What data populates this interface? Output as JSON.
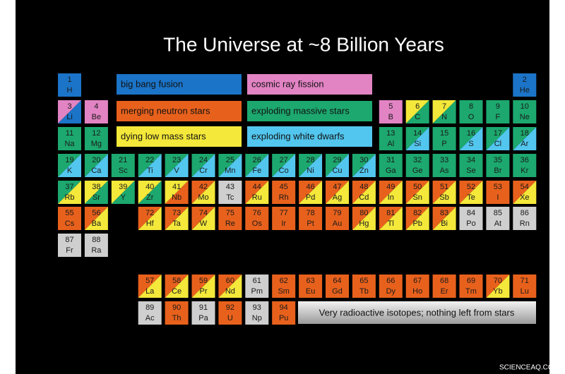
{
  "title": "The Universe at ~8 Billion Years",
  "legend": [
    {
      "label": "big bang fusion",
      "color": "#1b74c8"
    },
    {
      "label": "cosmic ray fission",
      "color": "#e283c3"
    },
    {
      "label": "merging neutron stars",
      "color": "#e8611c"
    },
    {
      "label": "exploding massive stars",
      "color": "#1ca86e"
    },
    {
      "label": "dying low mass stars",
      "color": "#f4e83a"
    },
    {
      "label": "exploding white dwarfs",
      "color": "#52c6ee"
    }
  ],
  "note": "Very radioactive isotopes; nothing left from stars",
  "watermark": "SCIENCEAQ.COM",
  "elements": [
    {
      "number": 1,
      "symbol": "H",
      "colors": [
        "#1b74c8"
      ]
    },
    {
      "number": 2,
      "symbol": "He",
      "colors": [
        "#1b74c8"
      ]
    },
    {
      "number": 3,
      "symbol": "Li",
      "colors": [
        "#e283c3",
        "#1b74c8"
      ]
    },
    {
      "number": 4,
      "symbol": "Be",
      "colors": [
        "#e283c3"
      ]
    },
    {
      "number": 5,
      "symbol": "B",
      "colors": [
        "#e283c3"
      ]
    },
    {
      "number": 6,
      "symbol": "C",
      "colors": [
        "#f4e83a",
        "#1ca86e"
      ]
    },
    {
      "number": 7,
      "symbol": "N",
      "colors": [
        "#f4e83a",
        "#1ca86e"
      ]
    },
    {
      "number": 8,
      "symbol": "O",
      "colors": [
        "#1ca86e"
      ]
    },
    {
      "number": 9,
      "symbol": "F",
      "colors": [
        "#1ca86e"
      ]
    },
    {
      "number": 10,
      "symbol": "Ne",
      "colors": [
        "#1ca86e"
      ]
    },
    {
      "number": 11,
      "symbol": "Na",
      "colors": [
        "#1ca86e"
      ]
    },
    {
      "number": 12,
      "symbol": "Mg",
      "colors": [
        "#1ca86e"
      ]
    },
    {
      "number": 13,
      "symbol": "Al",
      "colors": [
        "#1ca86e"
      ]
    },
    {
      "number": 14,
      "symbol": "Si",
      "colors": [
        "#1ca86e",
        "#52c6ee"
      ]
    },
    {
      "number": 15,
      "symbol": "P",
      "colors": [
        "#1ca86e"
      ]
    },
    {
      "number": 16,
      "symbol": "S",
      "colors": [
        "#1ca86e",
        "#52c6ee"
      ]
    },
    {
      "number": 17,
      "symbol": "Cl",
      "colors": [
        "#1ca86e",
        "#52c6ee"
      ]
    },
    {
      "number": 18,
      "symbol": "Ar",
      "colors": [
        "#1ca86e",
        "#52c6ee"
      ]
    },
    {
      "number": 19,
      "symbol": "K",
      "colors": [
        "#1ca86e",
        "#52c6ee"
      ]
    },
    {
      "number": 20,
      "symbol": "Ca",
      "colors": [
        "#1ca86e",
        "#52c6ee"
      ]
    },
    {
      "number": 21,
      "symbol": "Sc",
      "colors": [
        "#1ca86e"
      ]
    },
    {
      "number": 22,
      "symbol": "Ti",
      "colors": [
        "#1ca86e",
        "#52c6ee"
      ]
    },
    {
      "number": 23,
      "symbol": "V",
      "colors": [
        "#1ca86e",
        "#52c6ee"
      ]
    },
    {
      "number": 24,
      "symbol": "Cr",
      "colors": [
        "#1ca86e",
        "#52c6ee"
      ]
    },
    {
      "number": 25,
      "symbol": "Mn",
      "colors": [
        "#1ca86e",
        "#52c6ee"
      ]
    },
    {
      "number": 26,
      "symbol": "Fe",
      "colors": [
        "#1ca86e",
        "#52c6ee"
      ]
    },
    {
      "number": 27,
      "symbol": "Co",
      "colors": [
        "#1ca86e",
        "#52c6ee"
      ]
    },
    {
      "number": 28,
      "symbol": "Ni",
      "colors": [
        "#1ca86e",
        "#52c6ee"
      ]
    },
    {
      "number": 29,
      "symbol": "Cu",
      "colors": [
        "#1ca86e",
        "#52c6ee"
      ]
    },
    {
      "number": 30,
      "symbol": "Zn",
      "colors": [
        "#1ca86e",
        "#52c6ee"
      ]
    },
    {
      "number": 31,
      "symbol": "Ga",
      "colors": [
        "#1ca86e"
      ]
    },
    {
      "number": 32,
      "symbol": "Ge",
      "colors": [
        "#1ca86e"
      ]
    },
    {
      "number": 33,
      "symbol": "As",
      "colors": [
        "#1ca86e"
      ]
    },
    {
      "number": 34,
      "symbol": "Se",
      "colors": [
        "#1ca86e"
      ]
    },
    {
      "number": 35,
      "symbol": "Br",
      "colors": [
        "#1ca86e"
      ]
    },
    {
      "number": 36,
      "symbol": "Kr",
      "colors": [
        "#1ca86e"
      ]
    },
    {
      "number": 37,
      "symbol": "Rb",
      "colors": [
        "#1ca86e",
        "#f4e83a"
      ]
    },
    {
      "number": 38,
      "symbol": "Sr",
      "colors": [
        "#f4e83a",
        "#1ca86e"
      ]
    },
    {
      "number": 39,
      "symbol": "Y",
      "colors": [
        "#f4e83a",
        "#1ca86e"
      ]
    },
    {
      "number": 40,
      "symbol": "Zr",
      "colors": [
        "#f4e83a",
        "#1ca86e"
      ]
    },
    {
      "number": 41,
      "symbol": "Nb",
      "colors": [
        "#f4e83a",
        "#e8611c"
      ]
    },
    {
      "number": 42,
      "symbol": "Mo",
      "colors": [
        "#e8611c",
        "#f4e83a"
      ]
    },
    {
      "number": 43,
      "symbol": "Tc",
      "colors": [
        "#cfcfcf"
      ]
    },
    {
      "number": 44,
      "symbol": "Ru",
      "colors": [
        "#e8611c",
        "#f4e83a"
      ]
    },
    {
      "number": 45,
      "symbol": "Rh",
      "colors": [
        "#e8611c"
      ]
    },
    {
      "number": 46,
      "symbol": "Pd",
      "colors": [
        "#e8611c",
        "#f4e83a"
      ]
    },
    {
      "number": 47,
      "symbol": "Ag",
      "colors": [
        "#e8611c",
        "#f4e83a"
      ]
    },
    {
      "number": 48,
      "symbol": "Cd",
      "colors": [
        "#e8611c",
        "#f4e83a"
      ]
    },
    {
      "number": 49,
      "symbol": "In",
      "colors": [
        "#e8611c",
        "#f4e83a"
      ]
    },
    {
      "number": 50,
      "symbol": "Sn",
      "colors": [
        "#e8611c",
        "#f4e83a"
      ]
    },
    {
      "number": 51,
      "symbol": "Sb",
      "colors": [
        "#e8611c",
        "#f4e83a"
      ]
    },
    {
      "number": 52,
      "symbol": "Te",
      "colors": [
        "#e8611c",
        "#f4e83a"
      ]
    },
    {
      "number": 53,
      "symbol": "I",
      "colors": [
        "#e8611c"
      ]
    },
    {
      "number": 54,
      "symbol": "Xe",
      "colors": [
        "#e8611c",
        "#f4e83a"
      ]
    },
    {
      "number": 55,
      "symbol": "Cs",
      "colors": [
        "#e8611c"
      ]
    },
    {
      "number": 56,
      "symbol": "Ba",
      "colors": [
        "#e8611c",
        "#f4e83a"
      ]
    },
    {
      "number": 57,
      "symbol": "La",
      "colors": [
        "#e8611c",
        "#f4e83a"
      ]
    },
    {
      "number": 58,
      "symbol": "Ce",
      "colors": [
        "#e8611c",
        "#f4e83a"
      ]
    },
    {
      "number": 59,
      "symbol": "Pr",
      "colors": [
        "#e8611c",
        "#f4e83a"
      ]
    },
    {
      "number": 60,
      "symbol": "Nd",
      "colors": [
        "#e8611c",
        "#f4e83a"
      ]
    },
    {
      "number": 61,
      "symbol": "Pm",
      "colors": [
        "#cfcfcf"
      ]
    },
    {
      "number": 62,
      "symbol": "Sm",
      "colors": [
        "#e8611c"
      ]
    },
    {
      "number": 63,
      "symbol": "Eu",
      "colors": [
        "#e8611c"
      ]
    },
    {
      "number": 64,
      "symbol": "Gd",
      "colors": [
        "#e8611c"
      ]
    },
    {
      "number": 65,
      "symbol": "Tb",
      "colors": [
        "#e8611c"
      ]
    },
    {
      "number": 66,
      "symbol": "Dy",
      "colors": [
        "#e8611c"
      ]
    },
    {
      "number": 67,
      "symbol": "Ho",
      "colors": [
        "#e8611c"
      ]
    },
    {
      "number": 68,
      "symbol": "Er",
      "colors": [
        "#e8611c"
      ]
    },
    {
      "number": 69,
      "symbol": "Tm",
      "colors": [
        "#e8611c"
      ]
    },
    {
      "number": 70,
      "symbol": "Yb",
      "colors": [
        "#e8611c",
        "#f4e83a"
      ]
    },
    {
      "number": 71,
      "symbol": "Lu",
      "colors": [
        "#e8611c"
      ]
    },
    {
      "number": 72,
      "symbol": "Hf",
      "colors": [
        "#e8611c",
        "#f4e83a"
      ]
    },
    {
      "number": 73,
      "symbol": "Ta",
      "colors": [
        "#e8611c",
        "#f4e83a"
      ]
    },
    {
      "number": 74,
      "symbol": "W",
      "colors": [
        "#e8611c",
        "#f4e83a"
      ]
    },
    {
      "number": 75,
      "symbol": "Re",
      "colors": [
        "#e8611c"
      ]
    },
    {
      "number": 76,
      "symbol": "Os",
      "colors": [
        "#e8611c"
      ]
    },
    {
      "number": 77,
      "symbol": "Ir",
      "colors": [
        "#e8611c"
      ]
    },
    {
      "number": 78,
      "symbol": "Pt",
      "colors": [
        "#e8611c"
      ]
    },
    {
      "number": 79,
      "symbol": "Au",
      "colors": [
        "#e8611c"
      ]
    },
    {
      "number": 80,
      "symbol": "Hg",
      "colors": [
        "#e8611c",
        "#f4e83a"
      ]
    },
    {
      "number": 81,
      "symbol": "Tl",
      "colors": [
        "#e8611c",
        "#f4e83a"
      ]
    },
    {
      "number": 82,
      "symbol": "Pb",
      "colors": [
        "#e8611c",
        "#f4e83a"
      ]
    },
    {
      "number": 83,
      "symbol": "Bi",
      "colors": [
        "#e8611c",
        "#f4e83a"
      ]
    },
    {
      "number": 84,
      "symbol": "Po",
      "colors": [
        "#cfcfcf"
      ]
    },
    {
      "number": 85,
      "symbol": "At",
      "colors": [
        "#cfcfcf"
      ]
    },
    {
      "number": 86,
      "symbol": "Rn",
      "colors": [
        "#cfcfcf"
      ]
    },
    {
      "number": 87,
      "symbol": "Fr",
      "colors": [
        "#cfcfcf"
      ]
    },
    {
      "number": 88,
      "symbol": "Ra",
      "colors": [
        "#cfcfcf"
      ]
    },
    {
      "number": 89,
      "symbol": "Ac",
      "colors": [
        "#cfcfcf"
      ]
    },
    {
      "number": 90,
      "symbol": "Th",
      "colors": [
        "#e8611c"
      ]
    },
    {
      "number": 91,
      "symbol": "Pa",
      "colors": [
        "#cfcfcf"
      ]
    },
    {
      "number": 92,
      "symbol": "U",
      "colors": [
        "#e8611c"
      ]
    },
    {
      "number": 93,
      "symbol": "Np",
      "colors": [
        "#cfcfcf"
      ]
    },
    {
      "number": 94,
      "symbol": "Pu",
      "colors": [
        "#e8611c"
      ]
    }
  ]
}
